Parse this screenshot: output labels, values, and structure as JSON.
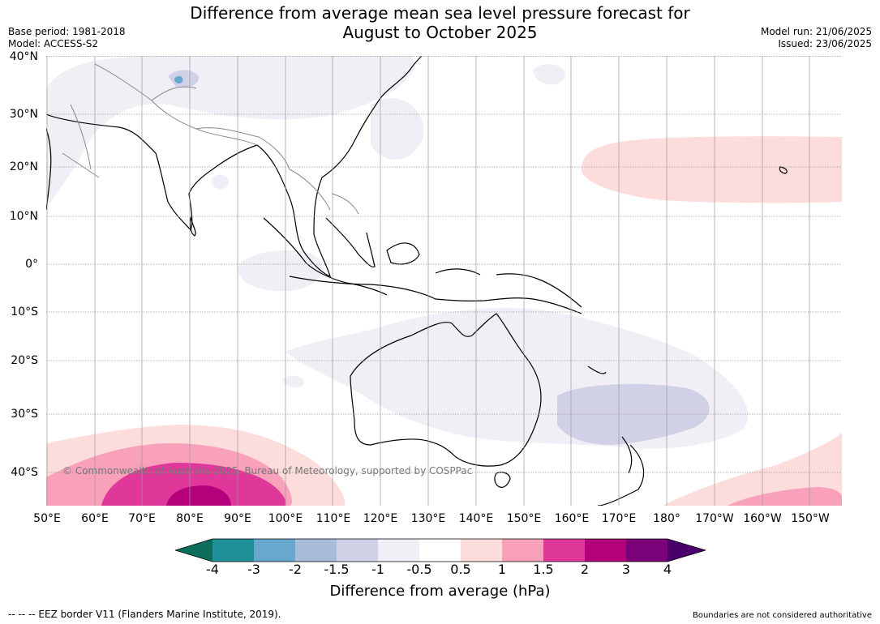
{
  "header": {
    "title_line1": "Difference from average mean sea level pressure forecast for",
    "title_line2": "August to October 2025",
    "base_period": "Base period: 1981-2018",
    "model": "Model: ACCESS-S2",
    "model_run": "Model run: 21/06/2025",
    "issued": "Issued: 23/06/2025"
  },
  "map": {
    "lat_labels": [
      "40°N",
      "30°N",
      "20°N",
      "10°N",
      "0°",
      "10°S",
      "20°S",
      "30°S",
      "40°S"
    ],
    "lon_labels": [
      "50°E",
      "60°E",
      "70°E",
      "80°E",
      "90°E",
      "100°E",
      "110°E",
      "120°E",
      "130°E",
      "140°E",
      "150°E",
      "160°E",
      "170°E",
      "180°",
      "170°W",
      "160°W",
      "150°W"
    ],
    "copyright": "© Commonwealth of Australia 2025, Bureau of Meteorology, supported by COSPPac"
  },
  "colorbar": {
    "ticks": [
      "-4",
      "-3",
      "-2",
      "-1.5",
      "-1",
      "-0.5",
      "0.5",
      "1",
      "1.5",
      "2",
      "3",
      "4"
    ],
    "colors": {
      "below_min": "#0e6e5c",
      "-4_-3": "#1f8f98",
      "-3_-2": "#68a8cf",
      "-2_-1.5": "#a9bcd8",
      "-1.5_-1": "#d0d1e6",
      "-1_-0.5": "#f1eef6",
      "-0.5_0.5": "#ffffff",
      "0.5_1": "#fddcdc",
      "1_1.5": "#f9a0bb",
      "1.5_2": "#e0379b",
      "2_3": "#b4007a",
      "3_4": "#7a0177",
      "above_max": "#49006a"
    },
    "title": "Difference from average (hPa)"
  },
  "footer": {
    "legend_line": "--  --  -- EEZ border V11 (Flanders Marine Institute, 2019).",
    "disclaimer": "Boundaries are not considered authoritative"
  }
}
